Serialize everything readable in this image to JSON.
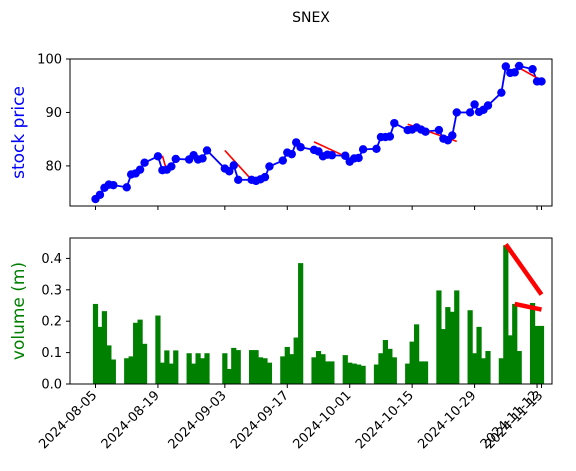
{
  "chart_data": [
    {
      "type": "line",
      "title": "SNEX",
      "xlabel": "",
      "ylabel": "stock price",
      "ylim": [
        72.5,
        100
      ],
      "yticks": [
        80,
        90,
        100
      ],
      "grid": false,
      "legend": "none",
      "series": [
        {
          "color": "#0000ff",
          "x": [
            "2024-08-05",
            "2024-08-06",
            "2024-08-07",
            "2024-08-08",
            "2024-08-09",
            "2024-08-12",
            "2024-08-13",
            "2024-08-14",
            "2024-08-15",
            "2024-08-16",
            "2024-08-19",
            "2024-08-20",
            "2024-08-21",
            "2024-08-22",
            "2024-08-23",
            "2024-08-26",
            "2024-08-27",
            "2024-08-28",
            "2024-08-29",
            "2024-08-30",
            "2024-09-03",
            "2024-09-04",
            "2024-09-05",
            "2024-09-06",
            "2024-09-09",
            "2024-09-10",
            "2024-09-11",
            "2024-09-12",
            "2024-09-13",
            "2024-09-16",
            "2024-09-17",
            "2024-09-18",
            "2024-09-19",
            "2024-09-20",
            "2024-09-23",
            "2024-09-24",
            "2024-09-25",
            "2024-09-26",
            "2024-09-27",
            "2024-09-30",
            "2024-10-01",
            "2024-10-02",
            "2024-10-03",
            "2024-10-04",
            "2024-10-07",
            "2024-10-08",
            "2024-10-09",
            "2024-10-10",
            "2024-10-11",
            "2024-10-14",
            "2024-10-15",
            "2024-10-16",
            "2024-10-17",
            "2024-10-18",
            "2024-10-21",
            "2024-10-22",
            "2024-10-23",
            "2024-10-24",
            "2024-10-25",
            "2024-10-28",
            "2024-10-29",
            "2024-10-30",
            "2024-10-31",
            "2024-11-01",
            "2024-11-04",
            "2024-11-05",
            "2024-11-06",
            "2024-11-07",
            "2024-11-08",
            "2024-11-11",
            "2024-11-12",
            "2024-11-13"
          ],
          "y": [
            73.8,
            74.6,
            75.9,
            76.5,
            76.4,
            76.0,
            78.4,
            78.6,
            79.3,
            80.6,
            81.8,
            79.2,
            79.3,
            79.9,
            81.3,
            81.2,
            82.0,
            81.2,
            81.4,
            82.9,
            79.5,
            79.0,
            80.1,
            77.4,
            77.4,
            77.2,
            77.5,
            77.9,
            79.9,
            81.0,
            82.5,
            82.2,
            84.4,
            83.5,
            83.0,
            82.7,
            81.8,
            82.1,
            82.0,
            81.9,
            80.8,
            81.4,
            81.5,
            83.1,
            83.2,
            85.4,
            85.4,
            85.5,
            88.0,
            86.7,
            86.8,
            87.2,
            86.8,
            86.4,
            86.7,
            85.1,
            84.8,
            85.7,
            90.0,
            90.0,
            91.5,
            90.1,
            90.5,
            91.3,
            93.7,
            98.6,
            97.4,
            97.5,
            98.7,
            98.1,
            95.8,
            95.8
          ]
        }
      ],
      "red_segments": [
        {
          "from": [
            "2024-08-20",
            81.9
          ],
          "to": [
            "2024-08-21",
            79.0
          ]
        },
        {
          "from": [
            "2024-09-03",
            82.9
          ],
          "to": [
            "2024-09-09",
            77.4
          ]
        },
        {
          "from": [
            "2024-09-23",
            84.5
          ],
          "to": [
            "2024-09-30",
            81.8
          ]
        },
        {
          "from": [
            "2024-10-14",
            87.8
          ],
          "to": [
            "2024-10-25",
            84.6
          ]
        },
        {
          "from": [
            "2024-11-07",
            98.8
          ],
          "to": [
            "2024-11-13",
            96.0
          ]
        }
      ]
    },
    {
      "type": "bar",
      "xlabel": "",
      "ylabel": "volume (m)",
      "ylim": [
        0,
        0.465
      ],
      "yticks": [
        0.0,
        0.1,
        0.2,
        0.3,
        0.4
      ],
      "ytick_labels": [
        "0.0",
        "0.1",
        "0.2",
        "0.3",
        "0.4"
      ],
      "grid": false,
      "legend": "none",
      "series": [
        {
          "color": "#008000",
          "x": [
            "2024-08-05",
            "2024-08-06",
            "2024-08-07",
            "2024-08-08",
            "2024-08-09",
            "2024-08-12",
            "2024-08-13",
            "2024-08-14",
            "2024-08-15",
            "2024-08-16",
            "2024-08-19",
            "2024-08-20",
            "2024-08-21",
            "2024-08-22",
            "2024-08-23",
            "2024-08-26",
            "2024-08-27",
            "2024-08-28",
            "2024-08-29",
            "2024-08-30",
            "2024-09-03",
            "2024-09-04",
            "2024-09-05",
            "2024-09-06",
            "2024-09-09",
            "2024-09-10",
            "2024-09-11",
            "2024-09-12",
            "2024-09-13",
            "2024-09-16",
            "2024-09-17",
            "2024-09-18",
            "2024-09-19",
            "2024-09-20",
            "2024-09-23",
            "2024-09-24",
            "2024-09-25",
            "2024-09-26",
            "2024-09-27",
            "2024-09-30",
            "2024-10-01",
            "2024-10-02",
            "2024-10-03",
            "2024-10-04",
            "2024-10-07",
            "2024-10-08",
            "2024-10-09",
            "2024-10-10",
            "2024-10-11",
            "2024-10-14",
            "2024-10-15",
            "2024-10-16",
            "2024-10-17",
            "2024-10-18",
            "2024-10-21",
            "2024-10-22",
            "2024-10-23",
            "2024-10-24",
            "2024-10-25",
            "2024-10-28",
            "2024-10-29",
            "2024-10-30",
            "2024-10-31",
            "2024-11-01",
            "2024-11-04",
            "2024-11-05",
            "2024-11-06",
            "2024-11-07",
            "2024-11-08",
            "2024-11-11",
            "2024-11-12",
            "2024-11-13"
          ],
          "values": [
            0.255,
            0.182,
            0.232,
            0.123,
            0.078,
            0.082,
            0.088,
            0.195,
            0.205,
            0.128,
            0.218,
            0.068,
            0.107,
            0.065,
            0.107,
            0.098,
            0.065,
            0.098,
            0.082,
            0.098,
            0.098,
            0.048,
            0.115,
            0.108,
            0.108,
            0.108,
            0.085,
            0.082,
            0.068,
            0.088,
            0.118,
            0.095,
            0.148,
            0.385,
            0.085,
            0.105,
            0.095,
            0.072,
            0.072,
            0.092,
            0.068,
            0.065,
            0.062,
            0.058,
            0.062,
            0.098,
            0.14,
            0.112,
            0.085,
            0.065,
            0.135,
            0.19,
            0.072,
            0.072,
            0.298,
            0.175,
            0.245,
            0.23,
            0.298,
            0.235,
            0.098,
            0.182,
            0.082,
            0.105,
            0.082,
            0.442,
            0.155,
            0.255,
            0.105,
            0.258,
            0.185,
            0.185
          ]
        }
      ],
      "red_segments": [
        {
          "from": [
            "2024-11-05",
            0.445
          ],
          "to": [
            "2024-11-13",
            0.285
          ]
        },
        {
          "from": [
            "2024-11-07",
            0.255
          ],
          "to": [
            "2024-11-13",
            0.237
          ]
        }
      ]
    }
  ],
  "x_axis": {
    "ticks": [
      "2024-08-05",
      "2024-08-19",
      "2024-09-03",
      "2024-09-17",
      "2024-10-01",
      "2024-10-15",
      "2024-10-29",
      "2024-11-12",
      "2024-11-13"
    ],
    "tick_labels": [
      "2024-08-05",
      "2024-08-19",
      "2024-09-03",
      "2024-09-17",
      "2024-10-01",
      "2024-10-15",
      "2024-10-29",
      "2024-11-12",
      "2024-11-13"
    ]
  }
}
